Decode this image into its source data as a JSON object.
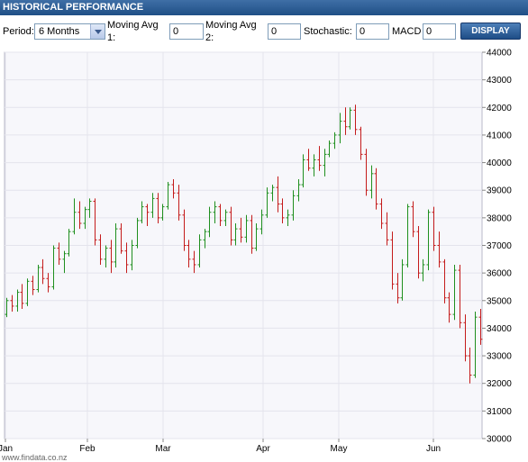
{
  "header": {
    "title": "HISTORICAL PERFORMANCE"
  },
  "controls": {
    "period_label": "Period:",
    "period_value": "6 Months",
    "ma1_label_line1": "Moving Avg",
    "ma1_label_line2": "1:",
    "ma1_value": "0",
    "ma2_label_line1": "Moving Avg",
    "ma2_label_line2": "2:",
    "ma2_value": "0",
    "stochastic_label": "Stochastic:",
    "stochastic_value": "0",
    "macd_label": "MACD",
    "macd_value": "0",
    "display_label": "DISPLAY"
  },
  "footer": {
    "credit": "www.findata.co.nz"
  },
  "colors": {
    "up": "#1f8f1f",
    "down": "#c41b1b",
    "plot_bg": "#f7f7fb",
    "grid": "#e4e4ec",
    "header": "#2a5b93"
  },
  "chart_data": {
    "type": "ohlc",
    "x_labels": [
      "Jan",
      "Feb",
      "Mar",
      "Apr",
      "May",
      "Jun"
    ],
    "y_tick_labels": [
      "44000",
      "43000",
      "42000",
      "41000",
      "40000",
      "39000",
      "38000",
      "37000",
      "36000",
      "35000",
      "34000",
      "33000",
      "32000",
      "31000",
      "30000"
    ],
    "ylim": [
      30000,
      44000
    ],
    "ohlc": [
      [
        34500,
        35100,
        34400,
        35000
      ],
      [
        35000,
        35200,
        34600,
        34800
      ],
      [
        34800,
        35400,
        34600,
        35300
      ],
      [
        35300,
        35600,
        34700,
        34900
      ],
      [
        34900,
        35800,
        34800,
        35700
      ],
      [
        35700,
        35900,
        35200,
        35400
      ],
      [
        35400,
        36300,
        35300,
        36200
      ],
      [
        36200,
        36500,
        35600,
        35800
      ],
      [
        35800,
        36000,
        35300,
        35500
      ],
      [
        35500,
        37000,
        35400,
        36900
      ],
      [
        36900,
        37100,
        36300,
        36500
      ],
      [
        36500,
        36800,
        36000,
        36700
      ],
      [
        36700,
        37600,
        36600,
        37500
      ],
      [
        37500,
        38700,
        37400,
        38200
      ],
      [
        38200,
        38600,
        37600,
        37800
      ],
      [
        37800,
        38400,
        37600,
        38300
      ],
      [
        38300,
        38700,
        38000,
        38600
      ],
      [
        38600,
        38700,
        37000,
        37200
      ],
      [
        37200,
        37400,
        36300,
        36500
      ],
      [
        36500,
        37000,
        36200,
        36900
      ],
      [
        36900,
        37200,
        36000,
        36400
      ],
      [
        36400,
        37800,
        36200,
        37600
      ],
      [
        37600,
        37800,
        36700,
        36800
      ],
      [
        36800,
        37100,
        36000,
        36300
      ],
      [
        36300,
        37200,
        36100,
        37000
      ],
      [
        37000,
        38000,
        36900,
        37900
      ],
      [
        37900,
        38600,
        37800,
        38400
      ],
      [
        38400,
        38500,
        37700,
        38200
      ],
      [
        38200,
        38900,
        38000,
        38700
      ],
      [
        38700,
        38900,
        37800,
        38000
      ],
      [
        38000,
        38500,
        37900,
        38400
      ],
      [
        38400,
        39300,
        38300,
        39200
      ],
      [
        39200,
        39400,
        38700,
        38900
      ],
      [
        38900,
        39200,
        37900,
        38100
      ],
      [
        38100,
        38300,
        36800,
        37000
      ],
      [
        37000,
        37200,
        36200,
        36500
      ],
      [
        36500,
        36800,
        36000,
        36300
      ],
      [
        36300,
        37400,
        36200,
        37200
      ],
      [
        37200,
        37600,
        36900,
        37500
      ],
      [
        37500,
        38400,
        37300,
        38200
      ],
      [
        38200,
        38600,
        37800,
        38400
      ],
      [
        38400,
        38500,
        37700,
        37900
      ],
      [
        37900,
        38300,
        37700,
        38200
      ],
      [
        38200,
        38400,
        37000,
        37200
      ],
      [
        37200,
        37800,
        37000,
        37600
      ],
      [
        37600,
        38000,
        37100,
        37300
      ],
      [
        37300,
        38100,
        37100,
        37900
      ],
      [
        37900,
        38100,
        36700,
        36900
      ],
      [
        36900,
        37800,
        36800,
        37600
      ],
      [
        37600,
        38300,
        37400,
        38100
      ],
      [
        38100,
        39100,
        38000,
        38900
      ],
      [
        38900,
        39200,
        38600,
        39100
      ],
      [
        39100,
        39500,
        38200,
        38500
      ],
      [
        38500,
        38700,
        37800,
        38000
      ],
      [
        38000,
        38300,
        37700,
        38100
      ],
      [
        38100,
        39000,
        37900,
        38800
      ],
      [
        38800,
        39400,
        38600,
        39200
      ],
      [
        39200,
        40300,
        39100,
        40100
      ],
      [
        40100,
        40500,
        39700,
        39800
      ],
      [
        39800,
        40300,
        39500,
        40100
      ],
      [
        40100,
        40600,
        39700,
        39900
      ],
      [
        39900,
        40500,
        39500,
        40300
      ],
      [
        40300,
        40800,
        40200,
        40700
      ],
      [
        40700,
        41100,
        40500,
        41000
      ],
      [
        41000,
        41800,
        40700,
        41500
      ],
      [
        41500,
        42000,
        41000,
        41300
      ],
      [
        41300,
        42000,
        41200,
        41900
      ],
      [
        41900,
        42100,
        41000,
        41200
      ],
      [
        41200,
        41300,
        40100,
        40300
      ],
      [
        40300,
        40500,
        38800,
        39000
      ],
      [
        39000,
        39900,
        38700,
        39600
      ],
      [
        39600,
        39800,
        38300,
        38500
      ],
      [
        38500,
        38700,
        37600,
        37800
      ],
      [
        37800,
        38200,
        37000,
        37200
      ],
      [
        37200,
        37500,
        35400,
        35600
      ],
      [
        35600,
        36000,
        34900,
        35100
      ],
      [
        35100,
        36500,
        35000,
        36300
      ],
      [
        36300,
        38500,
        36200,
        38400
      ],
      [
        38400,
        38600,
        37300,
        37500
      ],
      [
        37500,
        37700,
        35800,
        36000
      ],
      [
        36000,
        36500,
        35700,
        36300
      ],
      [
        36300,
        38300,
        36100,
        38200
      ],
      [
        38200,
        38400,
        36800,
        37000
      ],
      [
        37000,
        37500,
        36200,
        36400
      ],
      [
        36400,
        36500,
        34900,
        35100
      ],
      [
        35100,
        35300,
        34200,
        34500
      ],
      [
        34500,
        36300,
        34300,
        36100
      ],
      [
        36100,
        36300,
        34000,
        34200
      ],
      [
        34200,
        34500,
        32800,
        33000
      ],
      [
        33000,
        33300,
        32000,
        32300
      ],
      [
        32300,
        34600,
        32200,
        34400
      ],
      [
        34400,
        34700,
        33400,
        33600
      ]
    ]
  }
}
